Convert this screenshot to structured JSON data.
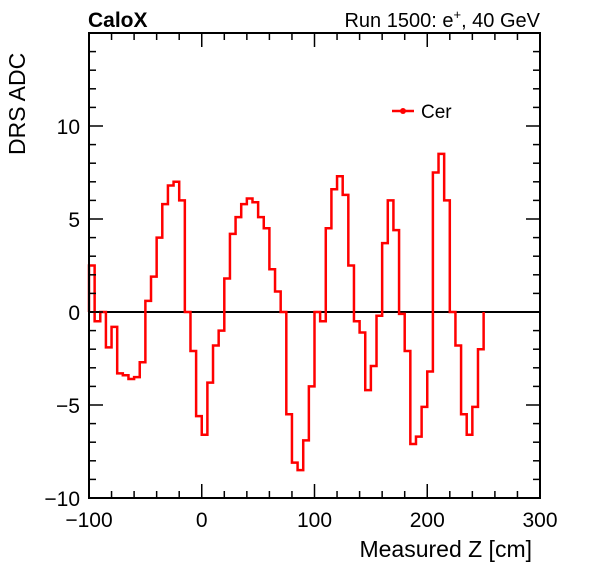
{
  "header": {
    "brand": "CaloX",
    "run_prefix": "Run 1500: e",
    "run_superscript": "+",
    "run_suffix": ", 40 GeV"
  },
  "chart_data": {
    "type": "line",
    "style": "step-histogram",
    "xlabel": "Measured Z [cm]",
    "ylabel": "DRS ADC",
    "xlim": [
      -100,
      300
    ],
    "ylim": [
      -10,
      15
    ],
    "xticks": [
      -100,
      0,
      100,
      200,
      300
    ],
    "xtick_labels": [
      "−100",
      "0",
      "100",
      "200",
      "300"
    ],
    "yticks": [
      -10,
      -5,
      0,
      5,
      10
    ],
    "ytick_labels": [
      "−10",
      "−5",
      "0",
      "5",
      "10"
    ],
    "legend": {
      "position": "top-right",
      "entries": [
        "Cer"
      ]
    },
    "colors": {
      "series": "#ff0000",
      "axis": "#000000",
      "zero_line": "#000000"
    },
    "series": [
      {
        "name": "Cer",
        "bin_width": 5,
        "x_start": -100,
        "values": [
          2.5,
          -0.5,
          0,
          -1.9,
          -0.8,
          -3.3,
          -3.4,
          -3.6,
          -3.5,
          -2.7,
          0.6,
          1.9,
          4.0,
          5.8,
          6.8,
          7.0,
          6.0,
          0,
          -2.1,
          -5.6,
          -6.6,
          -3.8,
          -1.8,
          -1.0,
          1.8,
          4.2,
          5.1,
          5.8,
          6.1,
          5.9,
          5.1,
          4.5,
          2.3,
          1.1,
          0,
          -5.5,
          -8.1,
          -8.5,
          -6.9,
          -4.0,
          0,
          -0.5,
          4.5,
          6.6,
          7.3,
          6.3,
          2.5,
          -0.5,
          -1.1,
          -4.2,
          -2.9,
          -0.2,
          3.7,
          6.0,
          4.4,
          -0.1,
          -2.1,
          -7.1,
          -6.7,
          -5.1,
          -3.2,
          7.5,
          8.5,
          6.0,
          0,
          -1.8,
          -5.5,
          -6.6,
          -5.1,
          -2.0
        ]
      }
    ]
  }
}
